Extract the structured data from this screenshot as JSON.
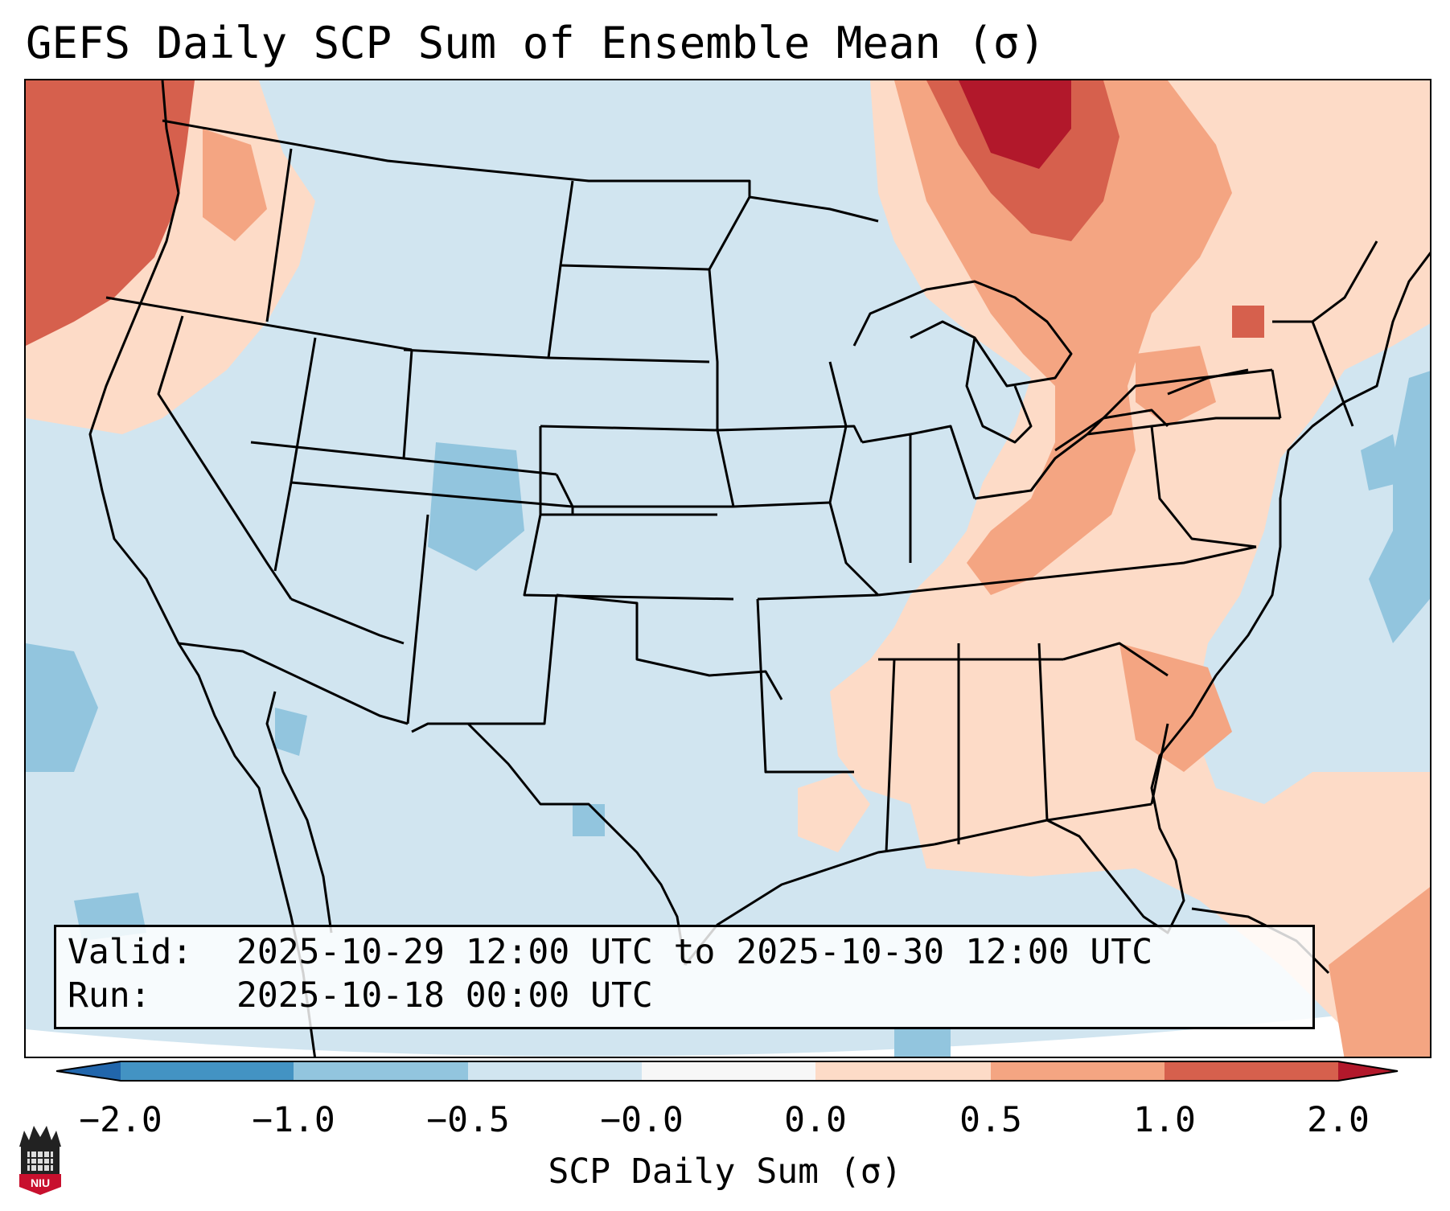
{
  "title": "GEFS Daily SCP Sum of Ensemble Mean (σ)",
  "info": {
    "valid_label": "Valid:",
    "valid_value": "2025-10-29 12:00 UTC to 2025-10-30 12:00 UTC",
    "run_label": "Run:",
    "run_value": "2025-10-18 00:00 UTC"
  },
  "colorbar": {
    "label": "SCP Daily Sum (σ)",
    "ticks": [
      "−2.0",
      "−1.0",
      "−0.5",
      "−0.0",
      "0.0",
      "0.5",
      "1.0",
      "2.0"
    ],
    "bins": [
      {
        "range": "< -2.0",
        "color": "#2166ac"
      },
      {
        "range": "-2.0 to -1.0",
        "color": "#4393c3"
      },
      {
        "range": "-1.0 to -0.5",
        "color": "#92c5de"
      },
      {
        "range": "-0.5 to -0.0",
        "color": "#d1e5f0"
      },
      {
        "range": "-0.0 to 0.0",
        "color": "#f7f7f7"
      },
      {
        "range": "0.0 to 0.5",
        "color": "#fddbc7"
      },
      {
        "range": "0.5 to 1.0",
        "color": "#f4a582"
      },
      {
        "range": "1.0 to 2.0",
        "color": "#d6604d"
      },
      {
        "range": "> 2.0",
        "color": "#b2182b"
      }
    ]
  },
  "logo": {
    "text": "NIU",
    "icon": "niu-tower-icon"
  },
  "colors": {
    "background": "#d1e5f0",
    "border": "#000000"
  }
}
